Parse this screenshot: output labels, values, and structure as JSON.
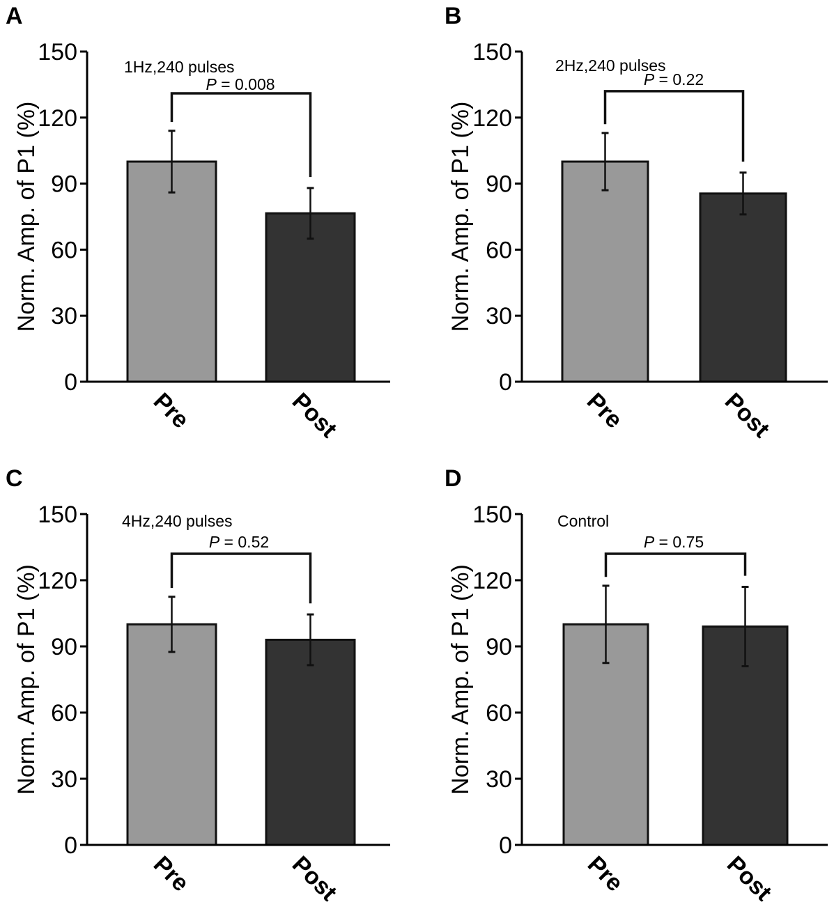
{
  "figure": {
    "colors": {
      "pre": "#999999",
      "post": "#333333",
      "axis": "#000000",
      "bar_edge": "#111111"
    }
  },
  "chart_data": [
    {
      "panel_label": "A",
      "type": "bar",
      "title": "1Hz,240 pulses",
      "ylabel": "Norm. Amp. of P1 (%)",
      "xlabel": "",
      "ylim": [
        0,
        150
      ],
      "yticks": [
        0,
        30,
        60,
        90,
        120,
        150
      ],
      "categories": [
        "Pre",
        "Post"
      ],
      "values": [
        100,
        76.5
      ],
      "errors": [
        14,
        11.5
      ],
      "significance": {
        "p_symbol": "P",
        "p_text": " = 0.008",
        "bracket_y": 131
      }
    },
    {
      "panel_label": "B",
      "type": "bar",
      "title": "2Hz,240 pulses",
      "ylabel": "Norm. Amp. of P1 (%)",
      "xlabel": "",
      "ylim": [
        0,
        150
      ],
      "yticks": [
        0,
        30,
        60,
        90,
        120,
        150
      ],
      "categories": [
        "Pre",
        "Post"
      ],
      "values": [
        100,
        85.5
      ],
      "errors": [
        13,
        9.5
      ],
      "significance": {
        "p_symbol": "P",
        "p_text": " = 0.22",
        "bracket_y": 132
      }
    },
    {
      "panel_label": "C",
      "type": "bar",
      "title": "4Hz,240 pulses",
      "ylabel": "Norm. Amp. of P1 (%)",
      "xlabel": "",
      "ylim": [
        0,
        150
      ],
      "yticks": [
        0,
        30,
        60,
        90,
        120,
        150
      ],
      "categories": [
        "Pre",
        "Post"
      ],
      "values": [
        100,
        93
      ],
      "errors": [
        12.5,
        11.5
      ],
      "significance": {
        "p_symbol": "P",
        "p_text": " = 0.52",
        "bracket_y": 132
      }
    },
    {
      "panel_label": "D",
      "type": "bar",
      "title": "Control",
      "ylabel": "Norm. Amp. of P1 (%)",
      "xlabel": "",
      "ylim": [
        0,
        150
      ],
      "yticks": [
        0,
        30,
        60,
        90,
        120,
        150
      ],
      "categories": [
        "Pre",
        "Post"
      ],
      "values": [
        100,
        99
      ],
      "errors": [
        17.5,
        18
      ],
      "significance": {
        "p_symbol": "P",
        "p_text": " = 0.75",
        "bracket_y": 132
      }
    }
  ]
}
